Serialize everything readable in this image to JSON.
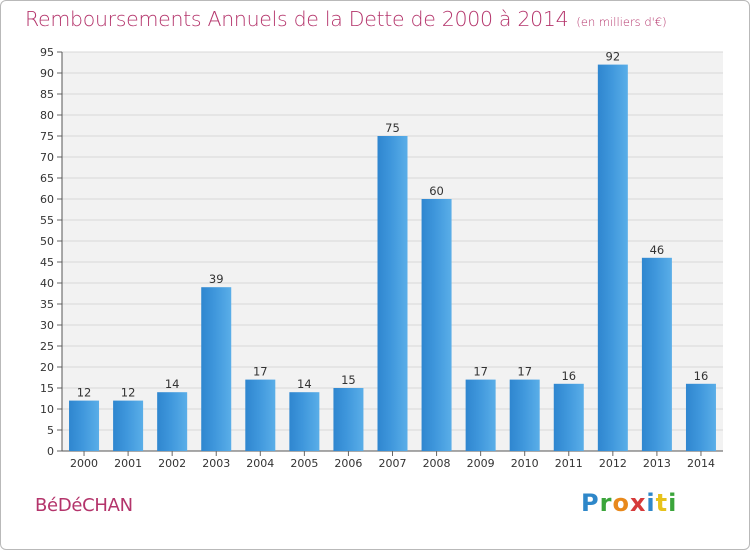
{
  "chart_data": {
    "type": "bar",
    "title": "Remboursements Annuels de la Dette de 2000 à 2014",
    "unit_note": "(en milliers d'€)",
    "categories": [
      "2000",
      "2001",
      "2002",
      "2003",
      "2004",
      "2005",
      "2006",
      "2007",
      "2008",
      "2009",
      "2010",
      "2011",
      "2012",
      "2013",
      "2014"
    ],
    "values": [
      12,
      12,
      14,
      39,
      17,
      14,
      15,
      75,
      60,
      17,
      17,
      16,
      92,
      46,
      16
    ],
    "ylim": [
      0,
      95
    ],
    "yticks": [
      0,
      5,
      10,
      15,
      20,
      25,
      30,
      35,
      40,
      45,
      50,
      55,
      60,
      65,
      70,
      75,
      80,
      85,
      90,
      95
    ],
    "grid": true,
    "bar_color": "#3f97dc",
    "title_color": "#b4346b"
  },
  "commune": "BéDéCHAN",
  "logo": {
    "letters": [
      "P",
      "r",
      "o",
      "x",
      "i",
      "t",
      "i"
    ]
  }
}
